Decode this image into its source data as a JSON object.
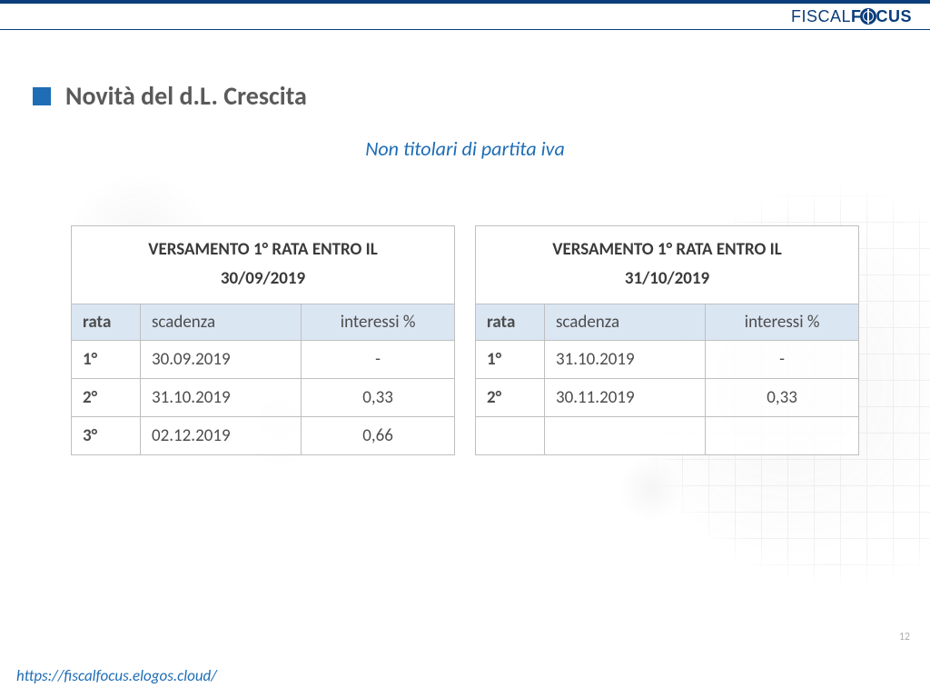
{
  "logo": {
    "part1": "FISCAL",
    "part2": "F",
    "part3": "CUS"
  },
  "title": "Novità del d.L. Crescita",
  "subtitle": "Non titolari di partita iva",
  "tables": [
    {
      "header": "VERSAMENTO 1° RATA ENTRO IL 30/09/2019",
      "columns": [
        "rata",
        "scadenza",
        "interessi %"
      ],
      "rows": [
        {
          "rata": "1°",
          "scadenza": "30.09.2019",
          "interessi": "-"
        },
        {
          "rata": "2°",
          "scadenza": "31.10.2019",
          "interessi": "0,33"
        },
        {
          "rata": "3°",
          "scadenza": "02.12.2019",
          "interessi": "0,66"
        }
      ],
      "min_rows": 3
    },
    {
      "header": "VERSAMENTO 1° RATA ENTRO IL 31/10/2019",
      "columns": [
        "rata",
        "scadenza",
        "interessi %"
      ],
      "rows": [
        {
          "rata": "1°",
          "scadenza": "31.10.2019",
          "interessi": "-"
        },
        {
          "rata": "2°",
          "scadenza": "30.11.2019",
          "interessi": "0,33"
        }
      ],
      "min_rows": 3
    }
  ],
  "footer_url": "https://fiscalfocus.elogos.cloud/",
  "page_number": "12",
  "colors": {
    "brand_dark": "#0a3d7a",
    "brand_blue": "#1e6db5",
    "header_fill": "#dbe6f3",
    "table_border": "#bfbfbf",
    "title_text": "#5a5a5a"
  }
}
